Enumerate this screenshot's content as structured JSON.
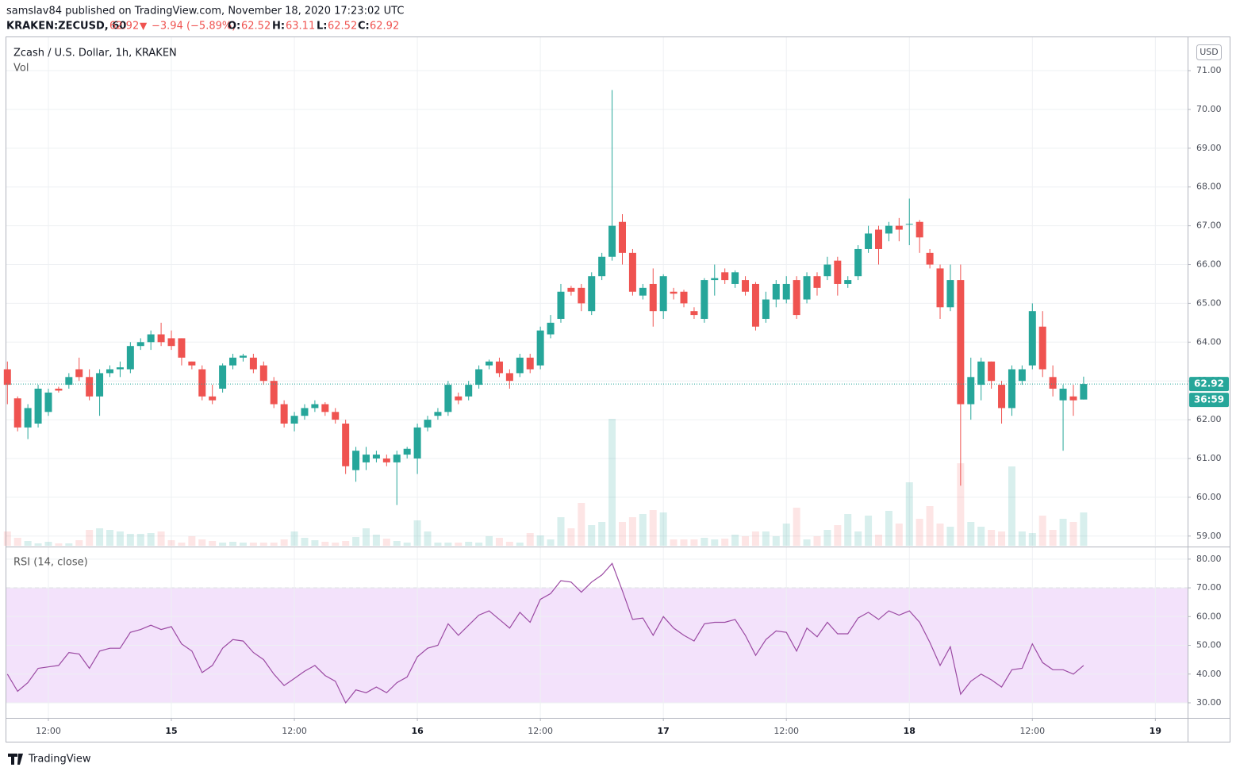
{
  "header": {
    "published": "samslav84 published on TradingView.com, November 18, 2020 17:23:02 UTC",
    "symbol": "KRAKEN:ZECUSD, 60",
    "last": "62.92",
    "arrow": "▼",
    "change": "−3.94 (−5.89%)",
    "o_label": "O:",
    "o": "62.52",
    "h_label": "H:",
    "h": "63.11",
    "l_label": "L:",
    "l": "62.52",
    "c_label": "C:",
    "c": "62.92"
  },
  "footer": {
    "brand": "TradingView"
  },
  "chart_data": {
    "type": "candlestick",
    "title": "Zcash / U.S. Dollar, 1h, KRAKEN",
    "currency": "USD",
    "countdown": "36:59",
    "up_color": "#26a69a",
    "down_color": "#ef5350",
    "grid": true,
    "categories": [
      null,
      null,
      null,
      null,
      "12:00",
      null,
      null,
      null,
      null,
      null,
      null,
      null,
      null,
      null,
      null,
      null,
      "15",
      null,
      null,
      null,
      null,
      null,
      null,
      null,
      null,
      null,
      null,
      null,
      "12:00",
      null,
      null,
      null,
      null,
      null,
      null,
      null,
      null,
      null,
      null,
      null,
      "16",
      null,
      null,
      null,
      null,
      null,
      null,
      null,
      null,
      null,
      null,
      null,
      "12:00",
      null,
      null,
      null,
      null,
      null,
      null,
      null,
      null,
      null,
      null,
      null,
      "17",
      null,
      null,
      null,
      null,
      null,
      null,
      null,
      null,
      null,
      null,
      null,
      "12:00",
      null,
      null,
      null,
      null,
      null,
      null,
      null,
      null,
      null,
      null,
      null,
      "18",
      null,
      null,
      null,
      null,
      null,
      null,
      null,
      null,
      null,
      null,
      null,
      "12:00",
      null,
      null,
      null,
      null,
      null,
      null,
      null,
      null,
      null,
      null,
      null,
      "19"
    ],
    "bold_labels": [
      "15",
      "16",
      "17",
      "18",
      "19"
    ],
    "open": [
      63.3,
      62.55,
      61.8,
      61.9,
      62.2,
      62.8,
      62.9,
      63.3,
      63.1,
      62.6,
      63.2,
      63.3,
      63.3,
      63.9,
      64.0,
      64.2,
      64.1,
      64.1,
      63.5,
      63.3,
      62.6,
      62.8,
      63.4,
      63.6,
      63.6,
      63.4,
      63.0,
      62.4,
      61.9,
      62.1,
      62.3,
      62.4,
      62.2,
      61.9,
      60.7,
      60.9,
      61.0,
      61.0,
      60.9,
      61.1,
      61.0,
      61.8,
      62.1,
      62.2,
      62.6,
      62.6,
      62.9,
      63.4,
      63.5,
      63.2,
      63.2,
      63.6,
      63.4,
      64.2,
      64.6,
      65.4,
      65.4,
      64.8,
      65.7,
      66.2,
      67.1,
      66.3,
      65.2,
      65.5,
      64.8,
      65.3,
      65.3,
      64.8,
      64.6,
      65.6,
      65.8,
      65.5,
      65.6,
      65.5,
      64.6,
      65.1,
      65.1,
      65.6,
      65.1,
      65.7,
      65.7,
      66.1,
      65.5,
      65.7,
      66.4,
      66.9,
      66.8,
      67.0,
      67.05,
      67.1,
      66.3,
      65.9,
      64.9,
      65.6,
      62.4,
      62.9,
      63.5,
      62.9,
      62.3,
      63.0,
      63.4,
      64.4,
      63.1,
      62.5,
      62.6,
      62.52,
      null,
      null,
      null,
      null,
      null,
      null,
      null
    ],
    "high": [
      63.5,
      62.6,
      62.4,
      62.9,
      62.8,
      62.85,
      63.2,
      63.6,
      63.3,
      63.3,
      63.4,
      63.5,
      64.0,
      64.1,
      64.3,
      64.5,
      64.3,
      64.1,
      63.5,
      63.4,
      62.9,
      63.45,
      63.7,
      63.7,
      63.7,
      63.5,
      63.1,
      62.5,
      62.2,
      62.4,
      62.5,
      62.45,
      62.3,
      62.0,
      61.3,
      61.3,
      61.2,
      61.1,
      61.2,
      61.3,
      61.9,
      62.1,
      62.3,
      63.0,
      62.7,
      63.0,
      63.4,
      63.55,
      63.6,
      63.3,
      63.7,
      63.7,
      64.4,
      64.7,
      65.5,
      65.45,
      65.5,
      65.8,
      66.3,
      70.5,
      67.3,
      66.4,
      65.5,
      65.9,
      65.75,
      65.4,
      65.35,
      64.9,
      65.65,
      66.0,
      65.9,
      65.85,
      65.7,
      65.55,
      65.3,
      65.6,
      65.7,
      65.7,
      65.8,
      65.8,
      66.2,
      66.2,
      65.7,
      66.5,
      67.0,
      67.0,
      67.1,
      67.2,
      67.7,
      67.15,
      66.4,
      66.0,
      66.0,
      66.0,
      63.6,
      63.6,
      63.5,
      63.0,
      63.4,
      63.4,
      65.0,
      64.8,
      63.4,
      62.9,
      62.9,
      63.11,
      null,
      null,
      null,
      null,
      null,
      null,
      null
    ],
    "low": [
      62.4,
      61.7,
      61.5,
      61.8,
      62.1,
      62.7,
      62.8,
      63.0,
      62.5,
      62.1,
      63.1,
      63.1,
      63.2,
      63.8,
      63.8,
      63.9,
      63.8,
      63.4,
      63.3,
      62.5,
      62.4,
      62.7,
      63.3,
      63.5,
      63.2,
      62.9,
      62.3,
      61.8,
      61.7,
      62.0,
      62.2,
      62.1,
      61.9,
      60.6,
      60.4,
      60.7,
      60.9,
      60.8,
      59.8,
      61.0,
      60.6,
      61.7,
      62.0,
      62.1,
      62.4,
      62.5,
      62.8,
      63.3,
      63.1,
      62.8,
      63.1,
      63.2,
      63.3,
      64.1,
      64.5,
      65.2,
      64.8,
      64.7,
      65.6,
      66.1,
      66.0,
      65.2,
      65.1,
      64.4,
      64.6,
      65.1,
      64.9,
      64.6,
      64.5,
      65.2,
      65.5,
      65.4,
      65.2,
      64.3,
      64.5,
      64.9,
      65.0,
      64.6,
      65.0,
      65.2,
      65.6,
      65.2,
      65.4,
      65.6,
      66.3,
      66.0,
      66.6,
      66.6,
      66.5,
      66.3,
      65.9,
      64.6,
      64.8,
      60.3,
      62.0,
      62.5,
      62.8,
      61.9,
      62.1,
      62.9,
      63.3,
      63.1,
      62.6,
      61.2,
      62.1,
      62.52,
      null,
      null,
      null,
      null,
      null,
      null,
      null
    ],
    "close": [
      62.9,
      61.8,
      62.3,
      62.8,
      62.7,
      62.75,
      63.1,
      63.1,
      62.6,
      63.2,
      63.3,
      63.35,
      63.9,
      64.0,
      64.2,
      64.0,
      63.9,
      63.6,
      63.4,
      62.6,
      62.5,
      63.4,
      63.6,
      63.65,
      63.3,
      63.0,
      62.4,
      61.9,
      62.1,
      62.3,
      62.4,
      62.2,
      62.0,
      60.8,
      61.2,
      61.1,
      61.1,
      60.9,
      61.1,
      61.25,
      61.8,
      62.0,
      62.2,
      62.9,
      62.5,
      62.9,
      63.3,
      63.5,
      63.2,
      63.0,
      63.6,
      63.3,
      64.3,
      64.5,
      65.3,
      65.3,
      65.0,
      65.7,
      66.2,
      67.0,
      66.3,
      65.3,
      65.4,
      64.8,
      65.7,
      65.25,
      65.0,
      64.7,
      65.6,
      65.65,
      65.6,
      65.8,
      65.3,
      64.4,
      65.1,
      65.5,
      65.5,
      64.7,
      65.7,
      65.4,
      66.0,
      65.5,
      65.6,
      66.4,
      66.8,
      66.4,
      67.0,
      66.9,
      67.05,
      66.7,
      66.0,
      64.9,
      65.6,
      62.4,
      63.1,
      63.5,
      63.0,
      62.3,
      63.3,
      63.3,
      64.8,
      63.3,
      62.8,
      62.8,
      62.5,
      62.92,
      null,
      null,
      null,
      null,
      null,
      null,
      null
    ],
    "ylim": [
      58.75,
      71.86
    ],
    "yticks": [
      {
        "value": 59,
        "label": "59.00"
      },
      {
        "value": 60,
        "label": "60.00"
      },
      {
        "value": 61,
        "label": "61.00"
      },
      {
        "value": 62,
        "label": "62.00"
      },
      {
        "value": 63,
        "label": "63.00"
      },
      {
        "value": 64,
        "label": "64.00"
      },
      {
        "value": 65,
        "label": "65.00"
      },
      {
        "value": 66,
        "label": "66.00"
      },
      {
        "value": 67,
        "label": "67.00"
      },
      {
        "value": 68,
        "label": "68.00"
      },
      {
        "value": 69,
        "label": "69.00"
      },
      {
        "value": 70,
        "label": "70.00"
      },
      {
        "value": 71,
        "label": "71.00"
      }
    ],
    "volume": {
      "name": "Vol",
      "values": [
        18,
        10,
        6,
        3,
        5,
        3,
        3,
        7,
        20,
        22,
        20,
        18,
        15,
        15,
        16,
        18,
        7,
        4,
        12,
        8,
        6,
        4,
        5,
        4,
        4,
        4,
        4,
        8,
        18,
        10,
        7,
        5,
        4,
        6,
        11,
        22,
        14,
        9,
        6,
        4,
        32,
        18,
        4,
        4,
        4,
        5,
        4,
        12,
        10,
        5,
        4,
        16,
        13,
        8,
        36,
        22,
        54,
        26,
        30,
        160,
        30,
        36,
        40,
        45,
        42,
        8,
        8,
        8,
        10,
        8,
        9,
        14,
        12,
        18,
        18,
        12,
        28,
        48,
        8,
        12,
        20,
        26,
        40,
        18,
        38,
        14,
        44,
        28,
        80,
        34,
        50,
        28,
        24,
        104,
        30,
        24,
        20,
        18,
        100,
        18,
        16,
        38,
        20,
        34,
        30,
        42,
        null,
        null,
        null,
        null,
        null,
        null,
        null
      ]
    },
    "rsi": {
      "name": "RSI (14, close)",
      "color": "#9b4aa3",
      "band_color": "#f3e2fb",
      "band": [
        30,
        70
      ],
      "values": [
        40,
        34,
        37,
        42,
        42.5,
        43,
        47.5,
        47,
        42,
        48,
        49,
        49,
        54.5,
        55.5,
        57,
        55.5,
        56.5,
        50.5,
        48,
        40.5,
        43,
        49,
        52,
        51.5,
        47.5,
        45,
        40,
        36,
        38.5,
        41,
        43,
        39.5,
        37.5,
        30,
        34.5,
        33.5,
        35.5,
        33.5,
        37,
        39,
        46,
        49,
        50,
        57.5,
        53.5,
        57,
        60.5,
        62,
        59,
        56,
        61.5,
        58,
        66,
        68,
        72.5,
        72,
        68.5,
        72,
        74.5,
        78.5,
        69,
        59,
        59.5,
        53.5,
        60,
        56,
        53.5,
        51.5,
        57.5,
        58,
        58,
        59,
        53.5,
        46.5,
        52,
        55,
        54.5,
        48,
        56,
        53,
        58,
        54,
        54,
        59.5,
        61.5,
        59,
        62,
        60.5,
        62,
        58,
        51,
        43,
        49.5,
        33,
        37.5,
        40,
        38,
        35.5,
        41.5,
        42,
        50.5,
        44,
        41.5,
        41.5,
        40,
        43,
        null,
        null,
        null,
        null,
        null,
        null,
        null
      ],
      "ylim": [
        24.75,
        84.1
      ],
      "yticks": [
        {
          "value": 30,
          "label": "30.00"
        },
        {
          "value": 40,
          "label": "40.00"
        },
        {
          "value": 50,
          "label": "50.00"
        },
        {
          "value": 60,
          "label": "60.00"
        },
        {
          "value": 70,
          "label": "70.00"
        },
        {
          "value": 80,
          "label": "80.00"
        }
      ]
    }
  }
}
